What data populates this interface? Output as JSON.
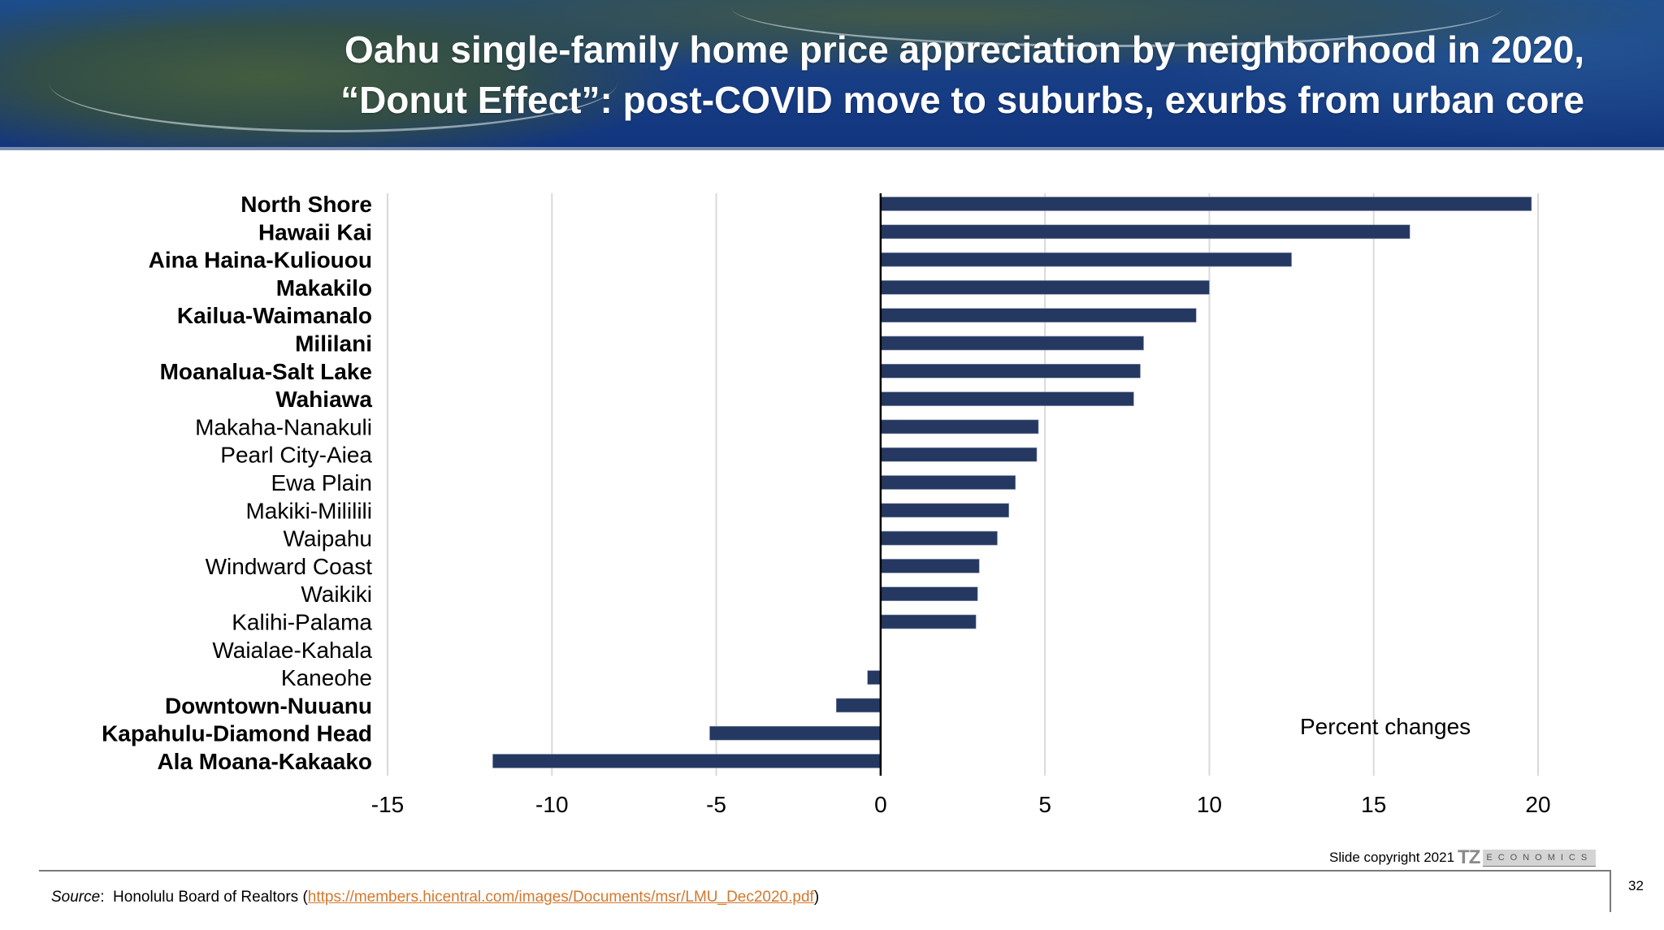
{
  "header": {
    "title_line1": "Oahu single-family home price appreciation by neighborhood in 2020,",
    "title_line2": "“Donut Effect”: post-COVID move to suburbs, exurbs from urban core"
  },
  "chart_data": {
    "type": "bar",
    "orientation": "horizontal",
    "title": "Oahu single-family home price appreciation by neighborhood in 2020, “Donut Effect”: post-COVID move to suburbs, exurbs from urban core",
    "xlabel": "",
    "ylabel": "",
    "annotation": "Percent changes",
    "xlim": [
      -15,
      20
    ],
    "xticks": [
      -15,
      -10,
      -5,
      0,
      5,
      10,
      15,
      20
    ],
    "xtick_labels": [
      "-15",
      "-10",
      "-5",
      "0",
      "5",
      "10",
      "15",
      "20"
    ],
    "grid": "vertical",
    "legend": "none",
    "bar_color": "#253861",
    "categories": [
      "North Shore",
      "Hawaii Kai",
      "Aina Haina-Kuliouou",
      "Makakilo",
      "Kailua-Waimanalo",
      "Mililani",
      "Moanalua-Salt Lake",
      "Wahiawa",
      "Makaha-Nanakuli",
      "Pearl City-Aiea",
      "Ewa Plain",
      "Makiki-Mililili",
      "Waipahu",
      "Windward Coast",
      "Waikiki",
      "Kalihi-Palama",
      "Waialae-Kahala",
      "Kaneohe",
      "Downtown-Nuuanu",
      "Kapahulu-Diamond Head",
      "Ala Moana-Kakaako"
    ],
    "bold_categories": [
      "North Shore",
      "Hawaii Kai",
      "Aina Haina-Kuliouou",
      "Makakilo",
      "Kailua-Waimanalo",
      "Mililani",
      "Moanalua-Salt Lake",
      "Wahiawa",
      "Downtown-Nuuanu",
      "Kapahulu-Diamond Head",
      "Ala Moana-Kakaako"
    ],
    "values": [
      19.8,
      16.1,
      12.5,
      10.0,
      9.6,
      8.0,
      7.9,
      7.7,
      4.8,
      4.75,
      4.1,
      3.9,
      3.55,
      3.0,
      2.95,
      2.9,
      0.0,
      -0.4,
      -1.35,
      -5.2,
      -11.8
    ]
  },
  "footer": {
    "copyright": "Slide copyright 2021",
    "logo_tz": "TZ",
    "logo_econ": "ECONOMICS",
    "page_number": "32",
    "source_label": "Source",
    "source_sep": ":  ",
    "source_text": "Honolulu Board of Realtors (",
    "source_link": "https://members.hicentral.com/images/Documents/msr/LMU_Dec2020.pdf",
    "source_close": ")",
    "link_color": "#d4782c"
  }
}
